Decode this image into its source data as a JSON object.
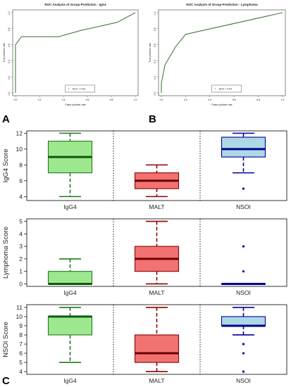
{
  "panel_letters": {
    "a": "A",
    "b": "B",
    "c": "C"
  },
  "colors": {
    "roc_line": "#4a7a45",
    "igG4_fill": "#9de88f",
    "igG4_stroke": "#1f7a1f",
    "igG4_median": "#0b5a0b",
    "malt_fill": "#f27272",
    "malt_stroke": "#8b0000",
    "malt_median": "#6b0000",
    "nsoi_fill": "#add8e6",
    "nsoi_stroke": "#000099",
    "nsoi_median": "#00008b"
  },
  "chart_data": [
    {
      "type": "line",
      "title": "ROC Analysis of Group-Prediction - IgG4",
      "xlabel": "False positive rate",
      "ylabel": "True positive rate",
      "xlim": [
        0,
        1
      ],
      "ylim": [
        0,
        1
      ],
      "x_ticks": [
        "0.0",
        "0.2",
        "0.4",
        "0.6",
        "0.8",
        "1.0"
      ],
      "y_ticks": [
        "0.0",
        "0.2",
        "0.4",
        "0.6",
        "0.8",
        "1.0"
      ],
      "series": [
        {
          "x": [
            0,
            0,
            0.05,
            0.36,
            0.55,
            0.85,
            1.0
          ],
          "y": [
            0,
            0.6,
            0.7,
            0.7,
            0.78,
            0.88,
            1.0
          ]
        }
      ],
      "legend": "AUC = 0.81"
    },
    {
      "type": "line",
      "title": "ROC Analysis of Group-Prediction - Lymphoma",
      "xlabel": "False positive rate",
      "ylabel": "True positive rate",
      "xlim": [
        0,
        1
      ],
      "ylim": [
        0,
        1
      ],
      "x_ticks": [
        "0.0",
        "0.2",
        "0.4",
        "0.6",
        "0.8",
        "1.0"
      ],
      "y_ticks": [
        "0.0",
        "0.2",
        "0.4",
        "0.6",
        "0.8",
        "1.0"
      ],
      "series": [
        {
          "x": [
            0,
            0,
            0.03,
            0.12,
            0.2,
            1.0
          ],
          "y": [
            0,
            0.12,
            0.35,
            0.58,
            0.73,
            1.0
          ]
        }
      ],
      "legend": "AUC = 0.92"
    },
    {
      "type": "box",
      "ylabel": "IgG4 Score",
      "ylim": [
        3.5,
        12.3
      ],
      "y_ticks": [
        4,
        6,
        8,
        10,
        12
      ],
      "categories": [
        "IgG4",
        "MALT",
        "NSOI"
      ],
      "boxes": [
        {
          "whisker_low": 4,
          "q1": 7,
          "median": 9,
          "q3": 11,
          "whisker_high": 12,
          "outliers": []
        },
        {
          "whisker_low": 4,
          "q1": 5,
          "median": 6,
          "q3": 7,
          "whisker_high": 8,
          "outliers": []
        },
        {
          "whisker_low": 7,
          "q1": 9,
          "median": 10,
          "q3": 11.5,
          "whisker_high": 12,
          "outliers": [
            5
          ]
        }
      ]
    },
    {
      "type": "box",
      "ylabel": "Lymphoma Score",
      "ylim": [
        -0.2,
        5.2
      ],
      "y_ticks": [
        0,
        1,
        2,
        3,
        4,
        5
      ],
      "categories": [
        "IgG4",
        "MALT",
        "NSOI"
      ],
      "boxes": [
        {
          "whisker_low": 0,
          "q1": 0,
          "median": 0,
          "q3": 1,
          "whisker_high": 2,
          "outliers": []
        },
        {
          "whisker_low": 0,
          "q1": 1,
          "median": 2,
          "q3": 3,
          "whisker_high": 5,
          "outliers": []
        },
        {
          "whisker_low": 0,
          "q1": 0,
          "median": 0,
          "q3": 0,
          "whisker_high": 0,
          "outliers": [
            3,
            1
          ]
        }
      ]
    },
    {
      "type": "box",
      "ylabel": "NSOI Score",
      "ylim": [
        3.7,
        11.3
      ],
      "y_ticks": [
        4,
        5,
        6,
        7,
        8,
        9,
        10,
        11
      ],
      "categories": [
        "IgG4",
        "MALT",
        "NSOI"
      ],
      "boxes": [
        {
          "whisker_low": 5,
          "q1": 8,
          "median": 10,
          "q3": 10,
          "whisker_high": 11,
          "outliers": []
        },
        {
          "whisker_low": 4,
          "q1": 5,
          "median": 6,
          "q3": 8,
          "whisker_high": 11,
          "outliers": []
        },
        {
          "whisker_low": 8,
          "q1": 9,
          "median": 9,
          "q3": 10,
          "whisker_high": 11,
          "outliers": [
            7,
            6,
            4
          ]
        }
      ]
    }
  ]
}
